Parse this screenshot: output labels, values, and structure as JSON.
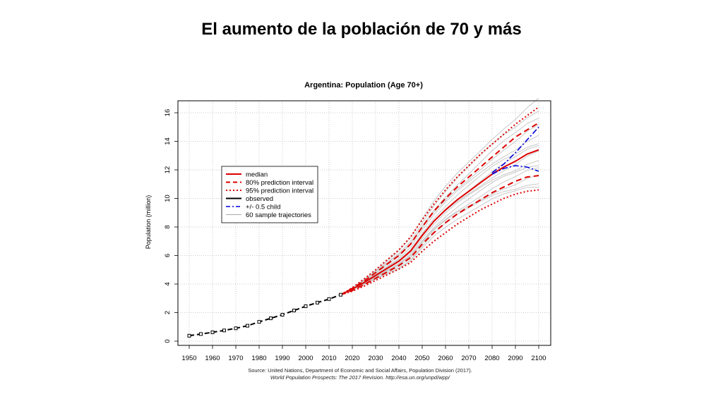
{
  "slide": {
    "title": "El aumento de la población de 70 y más",
    "source_line_1": "Source: United Nations, Department of Economic and Social Affairs, Population Division (2017).",
    "source_line_2": "World Population Prospects: The 2017 Revision. http://esa.un.org/unpd/wpp/"
  },
  "chart_data": {
    "type": "line",
    "title": "Argentina: Population (Age 70+)",
    "xlabel": "",
    "ylabel": "Population (million)",
    "xlim": [
      1950,
      2100
    ],
    "ylim": [
      0,
      16
    ],
    "x_ticks": [
      1950,
      1960,
      1970,
      1980,
      1990,
      2000,
      2010,
      2020,
      2030,
      2040,
      2050,
      2060,
      2070,
      2080,
      2090,
      2100
    ],
    "y_ticks": [
      0,
      2,
      4,
      6,
      8,
      10,
      12,
      14,
      16
    ],
    "grid": true,
    "legend_position": "upper-left",
    "colors": {
      "median": "#dd0000",
      "interval": "#dd0000",
      "observed": "#000000",
      "half_child": "#0000dd",
      "samples": "#c8c8c8"
    },
    "legend": [
      {
        "label": "median",
        "style": "red-solid"
      },
      {
        "label": "80% prediction interval",
        "style": "red-dashed"
      },
      {
        "label": "95% prediction interval",
        "style": "red-dotted"
      },
      {
        "label": "observed",
        "style": "black-solid"
      },
      {
        "label": "+/- 0.5 child",
        "style": "blue-dashdot"
      },
      {
        "label": "60 sample trajectories",
        "style": "gray-solid"
      }
    ],
    "series": [
      {
        "name": "observed",
        "x": [
          1950,
          1955,
          1960,
          1965,
          1970,
          1975,
          1980,
          1985,
          1990,
          1995,
          2000,
          2005,
          2010,
          2015
        ],
        "values": [
          0.38,
          0.5,
          0.62,
          0.75,
          0.9,
          1.08,
          1.35,
          1.6,
          1.85,
          2.15,
          2.45,
          2.7,
          2.95,
          3.25
        ]
      },
      {
        "name": "median",
        "x": [
          2015,
          2020,
          2025,
          2030,
          2035,
          2040,
          2045,
          2050,
          2055,
          2060,
          2065,
          2070,
          2075,
          2080,
          2085,
          2090,
          2095,
          2100
        ],
        "values": [
          3.25,
          3.65,
          4.1,
          4.6,
          5.1,
          5.6,
          6.3,
          7.4,
          8.4,
          9.2,
          9.9,
          10.5,
          11.1,
          11.7,
          12.2,
          12.6,
          13.1,
          13.4
        ]
      },
      {
        "name": "80% prediction interval upper",
        "x": [
          2015,
          2020,
          2025,
          2030,
          2035,
          2040,
          2045,
          2050,
          2055,
          2060,
          2065,
          2070,
          2075,
          2080,
          2085,
          2090,
          2095,
          2100
        ],
        "values": [
          3.25,
          3.7,
          4.2,
          4.8,
          5.4,
          6.0,
          6.8,
          8.0,
          9.1,
          10.0,
          10.8,
          11.5,
          12.2,
          12.9,
          13.6,
          14.3,
          14.8,
          15.3
        ]
      },
      {
        "name": "80% prediction interval lower",
        "x": [
          2015,
          2020,
          2025,
          2030,
          2035,
          2040,
          2045,
          2050,
          2055,
          2060,
          2065,
          2070,
          2075,
          2080,
          2085,
          2090,
          2095,
          2100
        ],
        "values": [
          3.25,
          3.55,
          3.95,
          4.4,
          4.85,
          5.3,
          5.85,
          6.8,
          7.6,
          8.3,
          8.9,
          9.4,
          9.9,
          10.4,
          10.8,
          11.2,
          11.5,
          11.6
        ]
      },
      {
        "name": "95% prediction interval upper",
        "x": [
          2015,
          2020,
          2025,
          2030,
          2035,
          2040,
          2045,
          2050,
          2055,
          2060,
          2065,
          2070,
          2075,
          2080,
          2085,
          2090,
          2095,
          2100
        ],
        "values": [
          3.25,
          3.75,
          4.35,
          5.0,
          5.7,
          6.4,
          7.3,
          8.5,
          9.6,
          10.6,
          11.5,
          12.3,
          13.1,
          13.8,
          14.5,
          15.2,
          15.8,
          16.4
        ]
      },
      {
        "name": "95% prediction interval lower",
        "x": [
          2015,
          2020,
          2025,
          2030,
          2035,
          2040,
          2045,
          2050,
          2055,
          2060,
          2065,
          2070,
          2075,
          2080,
          2085,
          2090,
          2095,
          2100
        ],
        "values": [
          3.25,
          3.5,
          3.85,
          4.25,
          4.65,
          5.05,
          5.5,
          6.3,
          7.0,
          7.6,
          8.2,
          8.7,
          9.2,
          9.6,
          10.0,
          10.3,
          10.5,
          10.6
        ]
      },
      {
        "name": "+/- 0.5 child upper",
        "x": [
          2080,
          2085,
          2090,
          2095,
          2100
        ],
        "values": [
          11.8,
          12.4,
          13.2,
          14.1,
          15.0
        ]
      },
      {
        "name": "+/- 0.5 child lower",
        "x": [
          2080,
          2085,
          2090,
          2095,
          2100
        ],
        "values": [
          11.7,
          12.1,
          12.3,
          12.2,
          11.9
        ]
      }
    ],
    "sample_trajectory_endpoints_2100": [
      10.8,
      11.2,
      11.6,
      12.0,
      12.4,
      12.8,
      13.2,
      13.6,
      14.0,
      14.5,
      15.0,
      15.6,
      16.3,
      17.0
    ]
  }
}
